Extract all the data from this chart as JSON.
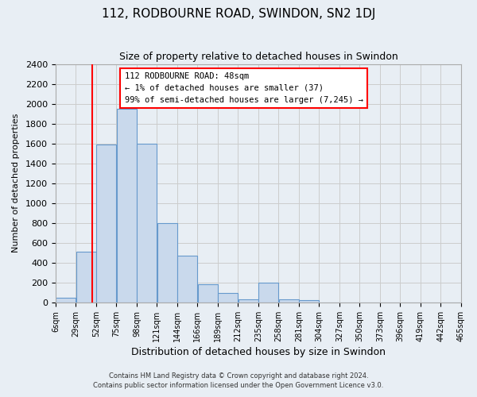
{
  "title": "112, RODBOURNE ROAD, SWINDON, SN2 1DJ",
  "subtitle": "Size of property relative to detached houses in Swindon",
  "xlabel": "Distribution of detached houses by size in Swindon",
  "ylabel": "Number of detached properties",
  "bin_labels": [
    "6sqm",
    "29sqm",
    "52sqm",
    "75sqm",
    "98sqm",
    "121sqm",
    "144sqm",
    "166sqm",
    "189sqm",
    "212sqm",
    "235sqm",
    "258sqm",
    "281sqm",
    "304sqm",
    "327sqm",
    "350sqm",
    "373sqm",
    "396sqm",
    "419sqm",
    "442sqm",
    "465sqm"
  ],
  "bar_heights": [
    50,
    510,
    1590,
    1950,
    1600,
    800,
    475,
    185,
    95,
    35,
    200,
    30,
    20,
    0,
    0,
    0,
    0,
    0,
    0,
    0
  ],
  "bar_color": "#c9d9ec",
  "bar_edge_color": "#6699cc",
  "grid_color": "#cccccc",
  "vline_color": "red",
  "annotation_line1": "112 RODBOURNE ROAD: 48sqm",
  "annotation_line2": "← 1% of detached houses are smaller (37)",
  "annotation_line3": "99% of semi-detached houses are larger (7,245) →",
  "ylim": [
    0,
    2400
  ],
  "yticks": [
    0,
    200,
    400,
    600,
    800,
    1000,
    1200,
    1400,
    1600,
    1800,
    2000,
    2200,
    2400
  ],
  "footer_line1": "Contains HM Land Registry data © Crown copyright and database right 2024.",
  "footer_line2": "Contains public sector information licensed under the Open Government Licence v3.0.",
  "background_color": "#e8eef4",
  "plot_background": "#e8eef4"
}
